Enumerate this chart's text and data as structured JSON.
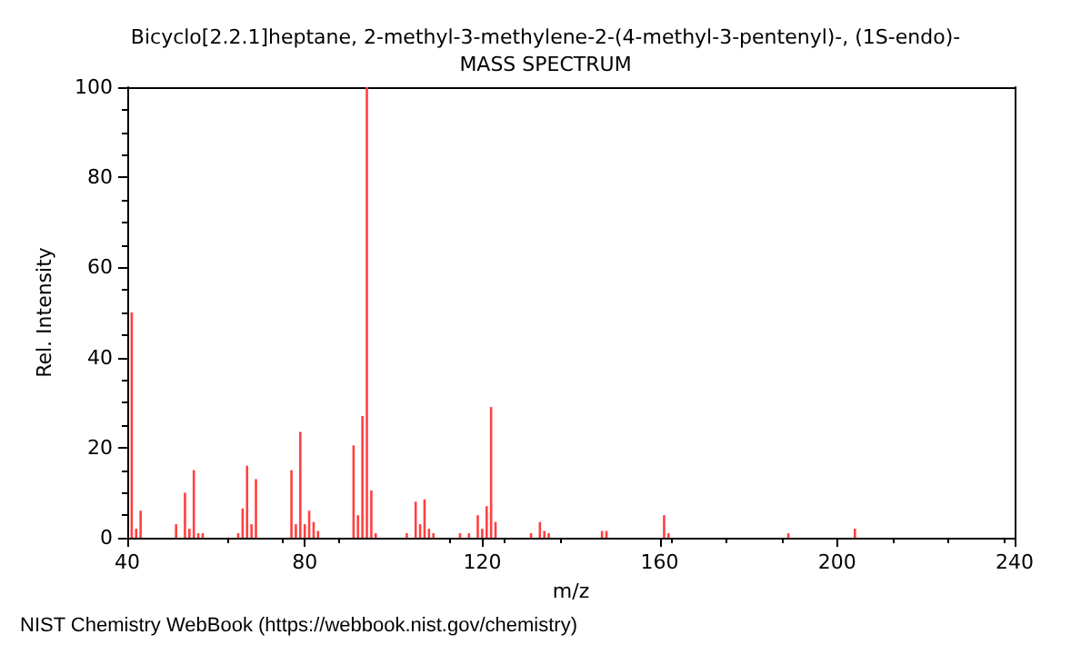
{
  "chart_data": {
    "type": "bar",
    "title": "Bicyclo[2.2.1]heptane, 2-methyl-3-methylene-2-(4-methyl-3-pentenyl)-, (1S-endo)-",
    "subtitle": "MASS SPECTRUM",
    "xlabel": "m/z",
    "ylabel": "Rel. Intensity",
    "x": [
      41,
      42,
      43,
      51,
      53,
      54,
      55,
      56,
      57,
      65,
      66,
      67,
      68,
      69,
      77,
      78,
      79,
      80,
      81,
      82,
      83,
      91,
      92,
      93,
      94,
      95,
      96,
      103,
      105,
      106,
      107,
      108,
      109,
      115,
      117,
      119,
      120,
      121,
      122,
      123,
      131,
      133,
      134,
      135,
      147,
      148,
      161,
      162,
      189,
      204
    ],
    "values": [
      50,
      2,
      6,
      3,
      10,
      2,
      15,
      1,
      1,
      1,
      6.5,
      16,
      3,
      13,
      15,
      3,
      23.5,
      3,
      6,
      3.5,
      1.5,
      20.5,
      5,
      27,
      100,
      10.5,
      1,
      1,
      8,
      3,
      8.5,
      2,
      1,
      1,
      1,
      5,
      2,
      7,
      29,
      3.5,
      1,
      3.5,
      1.5,
      1,
      1.5,
      1.5,
      5,
      1,
      1,
      2
    ],
    "color": "#ff4040",
    "xlim": [
      40,
      240
    ],
    "xticks": [
      40,
      80,
      120,
      160,
      200,
      240
    ],
    "ylim": [
      0,
      100
    ],
    "yticks": [
      0,
      20,
      40,
      60,
      80,
      100
    ],
    "grid": false,
    "annotations": [
      "NIST Chemistry WebBook (https://webbook.nist.gov/chemistry)"
    ]
  }
}
